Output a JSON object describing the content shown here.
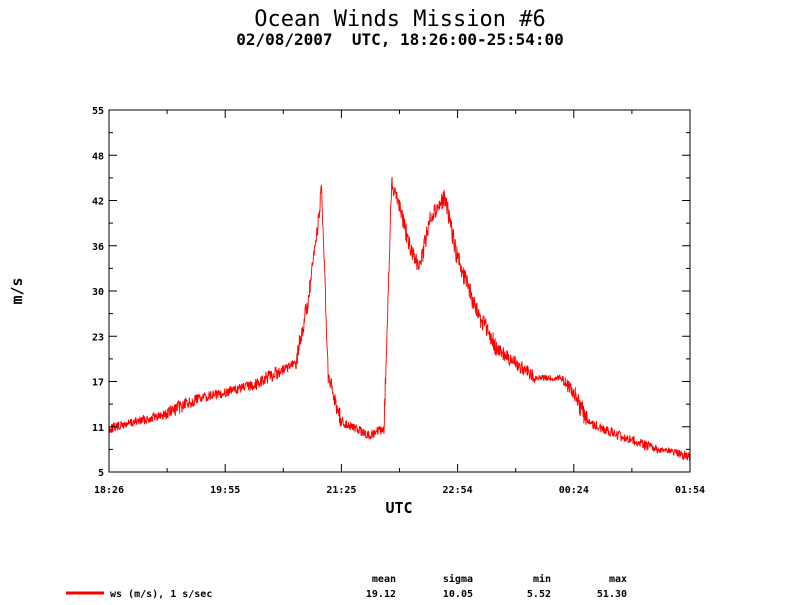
{
  "chart_data": {
    "type": "line",
    "title": "Ocean Winds Mission #6",
    "subtitle": "02/08/2007  UTC, 18:26:00-25:54:00",
    "xlabel": "UTC",
    "ylabel": "m/s",
    "x_tick_labels": [
      "18:26",
      "19:55",
      "21:25",
      "22:54",
      "00:24",
      "01:54"
    ],
    "y_tick_labels": [
      "55",
      "48",
      "42",
      "36",
      "30",
      "23",
      "17",
      "11",
      "5"
    ],
    "ylim": [
      5,
      55
    ],
    "grid": false,
    "legend_position": "bottom-left",
    "colors": {
      "series": "#ff0000",
      "axes": "#000000",
      "background": "#ffffff"
    },
    "series": [
      {
        "name": "ws (m/s), 1 s/sec",
        "color": "#ff0000",
        "x": [
          "18:26",
          "18:48",
          "19:10",
          "19:32",
          "19:55",
          "20:17",
          "20:39",
          "20:50",
          "21:00",
          "21:05",
          "21:10",
          "21:15",
          "21:25",
          "21:36",
          "21:47",
          "21:58",
          "22:04",
          "22:10",
          "22:18",
          "22:26",
          "22:33",
          "22:45",
          "22:54",
          "23:10",
          "23:25",
          "23:40",
          "23:55",
          "24:05",
          "24:15",
          "24:24",
          "24:35",
          "24:46",
          "25:00",
          "25:15",
          "25:30",
          "25:40",
          "25:54"
        ],
        "values": [
          11,
          12,
          13,
          15,
          16,
          17,
          19,
          20,
          29,
          36,
          44,
          18,
          12,
          11,
          10,
          11,
          45,
          42,
          36,
          33,
          40,
          43,
          35,
          27,
          22,
          20,
          18,
          18,
          18,
          16,
          12,
          11,
          10,
          9,
          8,
          8,
          7
        ]
      }
    ],
    "stats": {
      "headers": [
        "mean",
        "sigma",
        "min",
        "max"
      ],
      "values": [
        "19.12",
        "10.05",
        "5.52",
        "51.30"
      ]
    }
  }
}
